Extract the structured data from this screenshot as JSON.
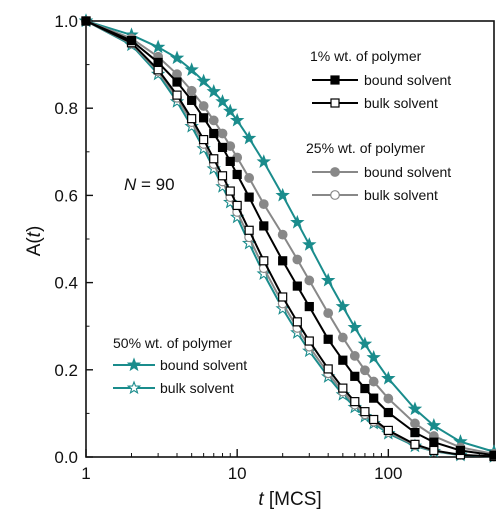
{
  "chart_data": {
    "type": "line",
    "xlabel": {
      "var": "t",
      "unit": "[MCS]"
    },
    "ylabel": {
      "pre": "A(",
      "var": "t",
      "post": ")"
    },
    "x_scale": "log",
    "xlim": [
      1,
      500
    ],
    "ylim": [
      0.0,
      1.0
    ],
    "x_ticks": [
      1,
      10,
      100
    ],
    "x_tick_labels": [
      "1",
      "10",
      "100"
    ],
    "y_ticks": [
      0.0,
      0.2,
      0.4,
      0.6,
      0.8,
      1.0
    ],
    "y_tick_labels": [
      "0.0",
      "0.2",
      "0.4",
      "0.6",
      "0.8",
      "1.0"
    ],
    "annotation": {
      "var": "N",
      "rest": " = 90"
    },
    "legend_groups": [
      {
        "title": "1% wt. of polymer",
        "entries": [
          "bound solvent",
          "bulk solvent"
        ]
      },
      {
        "title": "25% wt. of polymer",
        "entries": [
          "bound solvent",
          "bulk solvent"
        ]
      },
      {
        "title": "50% wt. of polymer",
        "entries": [
          "bound solvent",
          "bulk solvent"
        ]
      }
    ],
    "series": [
      {
        "name": "bound solvent",
        "group": "1% wt. of polymer",
        "color": "#000000",
        "marker": "square-filled",
        "x": [
          1,
          2,
          3,
          4,
          5,
          6,
          7,
          8,
          9,
          10,
          12,
          15,
          20,
          25,
          30,
          40,
          50,
          60,
          70,
          80,
          100,
          150,
          200,
          300,
          500
        ],
        "y": [
          1.0,
          0.955,
          0.905,
          0.86,
          0.818,
          0.778,
          0.742,
          0.71,
          0.678,
          0.648,
          0.596,
          0.53,
          0.45,
          0.392,
          0.345,
          0.27,
          0.222,
          0.185,
          0.157,
          0.135,
          0.102,
          0.056,
          0.034,
          0.015,
          0.004
        ]
      },
      {
        "name": "bulk solvent",
        "group": "1% wt. of polymer",
        "color": "#000000",
        "marker": "square-open",
        "x": [
          1,
          2,
          3,
          4,
          5,
          6,
          7,
          8,
          9,
          10,
          12,
          15,
          20,
          25,
          30,
          40,
          50,
          60,
          70,
          80,
          100,
          150,
          200,
          300,
          500
        ],
        "y": [
          1.0,
          0.95,
          0.888,
          0.83,
          0.776,
          0.728,
          0.684,
          0.645,
          0.61,
          0.577,
          0.52,
          0.45,
          0.367,
          0.31,
          0.266,
          0.202,
          0.158,
          0.127,
          0.104,
          0.086,
          0.061,
          0.029,
          0.015,
          0.005,
          0.001
        ]
      },
      {
        "name": "bound solvent",
        "group": "25% wt. of polymer",
        "color": "#888888",
        "marker": "circle-filled",
        "x": [
          1,
          2,
          3,
          4,
          5,
          6,
          7,
          8,
          9,
          10,
          12,
          15,
          20,
          25,
          30,
          40,
          50,
          60,
          70,
          80,
          100,
          150,
          200,
          300,
          500
        ],
        "y": [
          1.0,
          0.96,
          0.918,
          0.878,
          0.84,
          0.805,
          0.772,
          0.742,
          0.713,
          0.687,
          0.64,
          0.58,
          0.51,
          0.453,
          0.405,
          0.33,
          0.274,
          0.232,
          0.199,
          0.173,
          0.134,
          0.077,
          0.048,
          0.022,
          0.007
        ]
      },
      {
        "name": "bulk solvent",
        "group": "25% wt. of polymer",
        "color": "#888888",
        "marker": "circle-open",
        "x": [
          1,
          2,
          3,
          4,
          5,
          6,
          7,
          8,
          9,
          10,
          12,
          15,
          20,
          25,
          30,
          40,
          50,
          60,
          70,
          80,
          100,
          150,
          200,
          300,
          500
        ],
        "y": [
          1.0,
          0.948,
          0.884,
          0.824,
          0.768,
          0.718,
          0.672,
          0.632,
          0.596,
          0.562,
          0.504,
          0.433,
          0.352,
          0.296,
          0.253,
          0.192,
          0.15,
          0.12,
          0.098,
          0.081,
          0.057,
          0.027,
          0.014,
          0.005,
          0.001
        ]
      },
      {
        "name": "bound solvent",
        "group": "50% wt. of polymer",
        "color": "#1a8c8c",
        "marker": "star-filled",
        "x": [
          1,
          2,
          3,
          4,
          5,
          6,
          7,
          8,
          9,
          10,
          12,
          15,
          20,
          25,
          30,
          40,
          50,
          60,
          70,
          80,
          100,
          150,
          200,
          300,
          500
        ],
        "y": [
          1.0,
          0.968,
          0.94,
          0.915,
          0.888,
          0.862,
          0.838,
          0.815,
          0.793,
          0.772,
          0.731,
          0.677,
          0.6,
          0.538,
          0.487,
          0.405,
          0.345,
          0.297,
          0.259,
          0.228,
          0.18,
          0.11,
          0.072,
          0.035,
          0.012
        ]
      },
      {
        "name": "bulk solvent",
        "group": "50% wt. of polymer",
        "color": "#1a8c8c",
        "marker": "star-open",
        "x": [
          1,
          2,
          3,
          4,
          5,
          6,
          7,
          8,
          9,
          10,
          12,
          15,
          20,
          25,
          30,
          40,
          50,
          60,
          70,
          80,
          100,
          150,
          200,
          300,
          500
        ],
        "y": [
          1.0,
          0.945,
          0.878,
          0.815,
          0.758,
          0.707,
          0.661,
          0.62,
          0.584,
          0.55,
          0.49,
          0.42,
          0.34,
          0.285,
          0.243,
          0.184,
          0.143,
          0.114,
          0.093,
          0.077,
          0.054,
          0.025,
          0.013,
          0.004,
          0.001
        ]
      }
    ]
  }
}
